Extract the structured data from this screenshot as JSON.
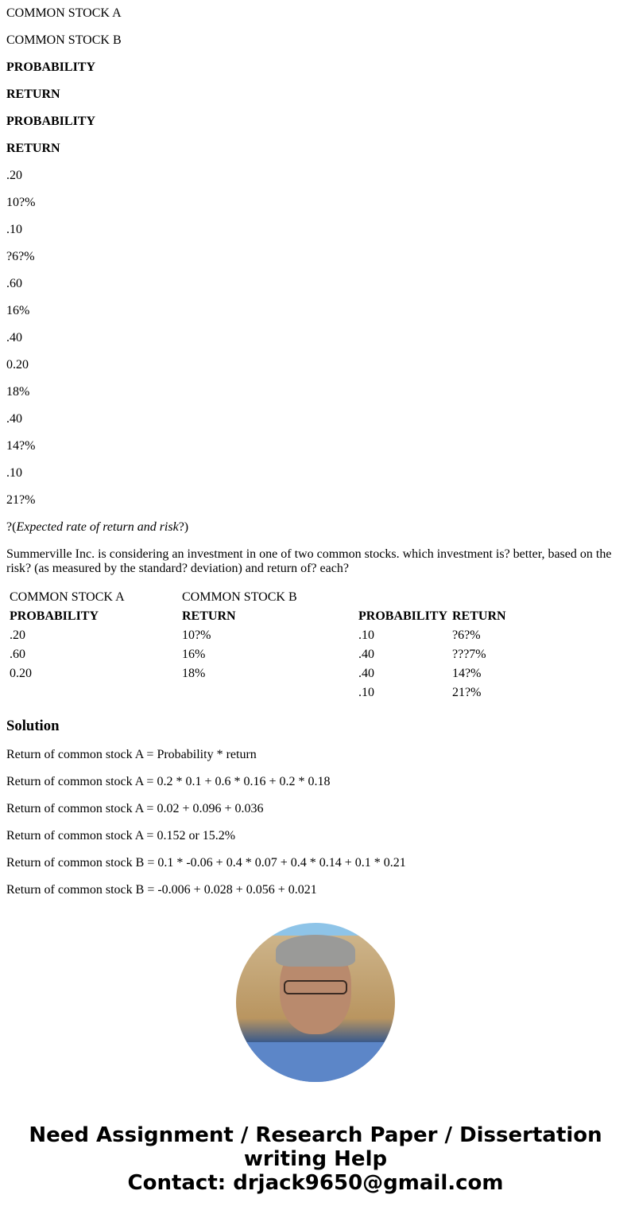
{
  "header_lines": [
    {
      "text": "COMMON STOCK A",
      "bold": false
    },
    {
      "text": "COMMON STOCK B",
      "bold": false
    },
    {
      "text": "PROBABILITY",
      "bold": true
    },
    {
      "text": "RETURN",
      "bold": true
    },
    {
      "text": "PROBABILITY",
      "bold": true
    },
    {
      "text": "RETURN",
      "bold": true
    },
    {
      "text": ".20"
    },
    {
      "text": "10?%"
    },
    {
      "text": ".10"
    },
    {
      "text": "?6?%"
    },
    {
      "text": ".60"
    },
    {
      "text": "16%"
    },
    {
      "text": ".40"
    },
    {
      "text": "0.20"
    },
    {
      "text": "18%"
    },
    {
      "text": ".40"
    },
    {
      "text": "14?%"
    },
    {
      "text": ".10"
    },
    {
      "text": "21?%"
    }
  ],
  "subtitle": {
    "prefix": "?(",
    "italic": "Expected rate of return and risk",
    "suffix": "?)"
  },
  "question": "Summerville Inc. is considering an investment in one of two common stocks. which investment is? better, based on the risk? (as measured by the standard? deviation) and return of? each?",
  "table": {
    "rows": [
      [
        "COMMON STOCK A",
        "COMMON STOCK B",
        "",
        ""
      ],
      [
        "PROBABILITY",
        "RETURN",
        "PROBABILITY",
        "RETURN"
      ],
      [
        ".20",
        "10?%",
        ".10",
        "?6?%"
      ],
      [
        ".60",
        "16%",
        ".40",
        "???7%"
      ],
      [
        "0.20",
        "18%",
        ".40",
        "14?%"
      ],
      [
        "",
        "",
        ".10",
        "21?%"
      ]
    ]
  },
  "solution": {
    "heading": "Solution",
    "lines": [
      "Return of common stock A = Probability * return",
      "Return of common stock A = 0.2 * 0.1 + 0.6 * 0.16 + 0.2 * 0.18",
      "Return of common stock A = 0.02 + 0.096 + 0.036",
      "Return of common stock A = 0.152 or 15.2%",
      "Return of common stock B = 0.1 * -0.06 + 0.4 * 0.07 + 0.4 * 0.14 + 0.1 * 0.21",
      "Return of common stock B = -0.006 + 0.028 + 0.056 + 0.021"
    ]
  },
  "footer": {
    "line1": "Need Assignment / Research Paper / Dissertation",
    "line2": "writing Help",
    "line3": "Contact: drjack9650@gmail.com"
  }
}
